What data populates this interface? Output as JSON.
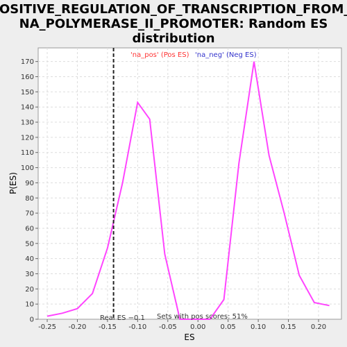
{
  "chart_data": {
    "type": "line",
    "title_lines": [
      "POSITIVE_REGULATION_OF_TRANSCRIPTION_FROM_R",
      "NA_POLYMERASE_II_PROMOTER: Random ES",
      "distribution"
    ],
    "xlabel": "ES",
    "ylabel": "P(ES)",
    "xlim": [
      -0.265,
      0.238
    ],
    "ylim": [
      0,
      179
    ],
    "xticks": [
      -0.25,
      -0.2,
      -0.15,
      -0.1,
      -0.05,
      0.0,
      0.05,
      0.1,
      0.15,
      0.2
    ],
    "xtick_labels": [
      "-0.25",
      "-0.20",
      "-0.15",
      "-0.10",
      "-0.05",
      "0.00",
      "0.05",
      "0.10",
      "0.15",
      "0.20"
    ],
    "yticks": [
      0,
      10,
      20,
      30,
      40,
      50,
      60,
      70,
      80,
      90,
      100,
      110,
      120,
      130,
      140,
      150,
      160,
      170
    ],
    "grid": true,
    "line_color": "#ff44ff",
    "series": [
      {
        "x": [
          -0.25,
          -0.225,
          -0.2,
          -0.175,
          -0.15,
          -0.125,
          -0.1,
          -0.08,
          -0.055,
          -0.03,
          -0.005,
          0.02,
          0.043,
          0.068,
          0.093,
          0.118,
          0.143,
          0.168,
          0.193,
          0.218
        ],
        "y": [
          2,
          4,
          7,
          17,
          47,
          90,
          143,
          132,
          43,
          0,
          0,
          0,
          13,
          103,
          170,
          108,
          70,
          29,
          11,
          9
        ]
      }
    ],
    "real_es": -0.14,
    "real_es_label": "Real ES −0.1",
    "pos_scores_label": "Sets with pos scores: 51%",
    "legend": [
      {
        "label": "'na_pos' (Pos ES)",
        "color": "#ff3333"
      },
      {
        "label": "'na_neg' (Neg ES)",
        "color": "#3333cc"
      }
    ],
    "legend_placement": "top"
  }
}
